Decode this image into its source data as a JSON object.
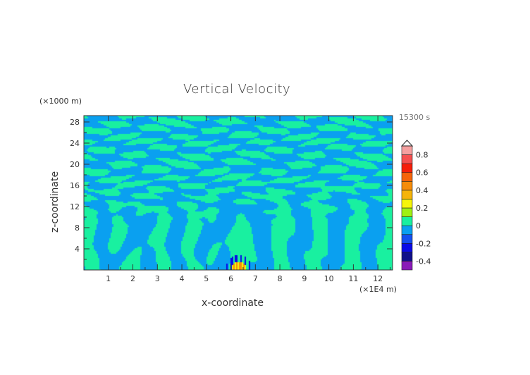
{
  "chart_data": {
    "type": "heatmap",
    "title": "Vertical Velocity",
    "xlabel": "x-coordinate",
    "ylabel": "z-coordinate",
    "x_unit": "(×1E4 m)",
    "y_unit": "(×1000 m)",
    "time_label": "15300 s",
    "xlim": [
      0,
      12.6
    ],
    "ylim": [
      0,
      29.2
    ],
    "x_ticks": [
      1,
      2,
      3,
      4,
      5,
      6,
      7,
      8,
      9,
      10,
      11,
      12
    ],
    "y_ticks": [
      4,
      8,
      12,
      16,
      20,
      24,
      28
    ],
    "colorbar": {
      "levels": [
        -0.5,
        -0.4,
        -0.3,
        -0.2,
        -0.1,
        0,
        0.1,
        0.2,
        0.3,
        0.4,
        0.5,
        0.6,
        0.7,
        0.8,
        0.9
      ],
      "tick_labels": [
        "-0.4",
        "-0.2",
        "0",
        "0.2",
        "0.4",
        "0.6",
        "0.8"
      ],
      "tick_values": [
        -0.4,
        -0.2,
        0,
        0.2,
        0.4,
        0.6,
        0.8
      ],
      "colors": [
        "#8a1ab8",
        "#10108a",
        "#0a0ae6",
        "#1450f0",
        "#0aa0f0",
        "#19f0a0",
        "#a0f014",
        "#f5f50a",
        "#f5b40a",
        "#f58c0a",
        "#f5640a",
        "#f51e0a",
        "#f55050",
        "#f5a0a0"
      ],
      "extend": "max"
    },
    "dominant_range": [
      -0.1,
      0.1
    ]
  }
}
